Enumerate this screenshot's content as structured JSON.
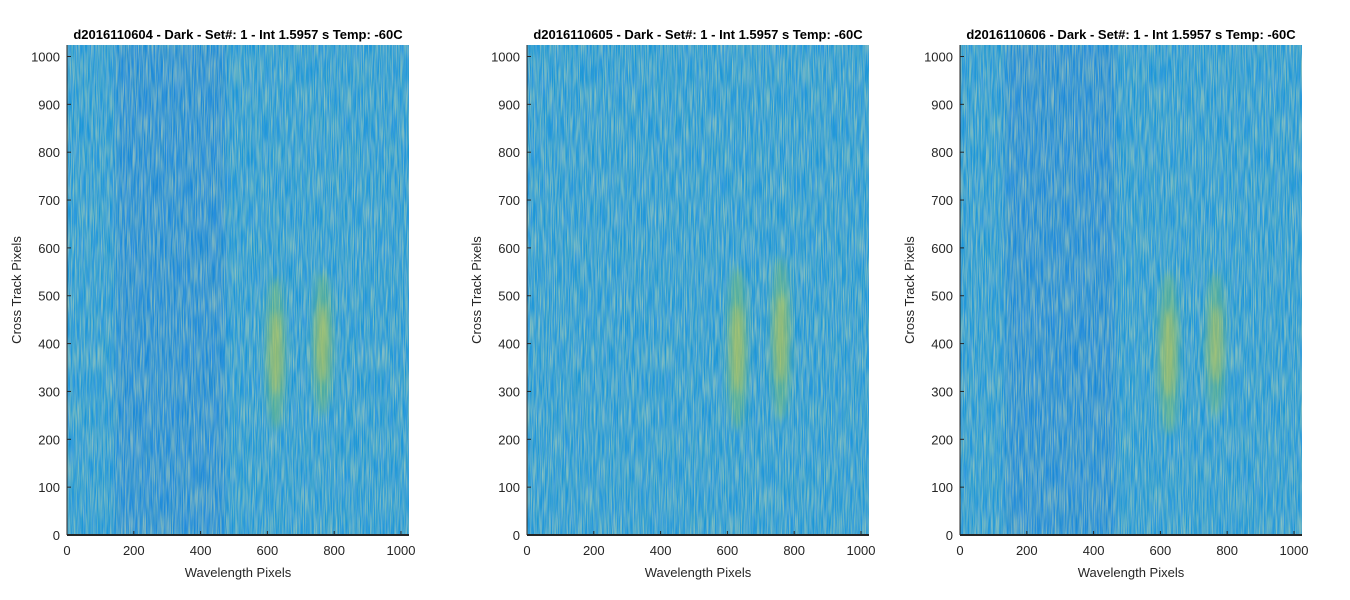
{
  "chart_data": [
    {
      "type": "heatmap",
      "title": "d2016110604 - Dark - Set#: 1 - Int 1.5957 s Temp: -60C",
      "xlabel": "Wavelength Pixels",
      "ylabel": "Cross Track Pixels",
      "xlim": [
        0,
        1024
      ],
      "ylim": [
        0,
        1024
      ],
      "xticks": [
        0,
        200,
        400,
        600,
        800,
        1000
      ],
      "yticks": [
        0,
        100,
        200,
        300,
        400,
        500,
        600,
        700,
        800,
        900,
        1000
      ],
      "colormap": "parula",
      "features": [
        {
          "x": 625,
          "y": 380,
          "x_halfwidth": 28,
          "y_halfwidth": 160,
          "strength": 0.9
        },
        {
          "x": 765,
          "y": 400,
          "x_halfwidth": 28,
          "y_halfwidth": 150,
          "strength": 0.9
        }
      ],
      "darker_band_x": 310
    },
    {
      "type": "heatmap",
      "title": "d2016110605 - Dark - Set#: 1 - Int 1.5957 s Temp: -60C",
      "xlabel": "Wavelength Pixels",
      "ylabel": "Cross Track Pixels",
      "xlim": [
        0,
        1024
      ],
      "ylim": [
        0,
        1024
      ],
      "xticks": [
        0,
        200,
        400,
        600,
        800,
        1000
      ],
      "yticks": [
        0,
        100,
        200,
        300,
        400,
        500,
        600,
        700,
        800,
        900,
        1000
      ],
      "colormap": "parula",
      "features": [
        {
          "x": 630,
          "y": 390,
          "x_halfwidth": 28,
          "y_halfwidth": 170,
          "strength": 0.95
        },
        {
          "x": 760,
          "y": 410,
          "x_halfwidth": 28,
          "y_halfwidth": 170,
          "strength": 0.9
        }
      ],
      "darker_band_x": null
    },
    {
      "type": "heatmap",
      "title": "d2016110606 - Dark - Set#: 1 - Int 1.5957 s Temp: -60C",
      "xlabel": "Wavelength Pixels",
      "ylabel": "Cross Track Pixels",
      "xlim": [
        0,
        1024
      ],
      "ylim": [
        0,
        1024
      ],
      "xticks": [
        0,
        200,
        400,
        600,
        800,
        1000
      ],
      "yticks": [
        0,
        100,
        200,
        300,
        400,
        500,
        600,
        700,
        800,
        900,
        1000
      ],
      "colormap": "parula",
      "features": [
        {
          "x": 625,
          "y": 380,
          "x_halfwidth": 30,
          "y_halfwidth": 170,
          "strength": 0.9
        },
        {
          "x": 765,
          "y": 400,
          "x_halfwidth": 28,
          "y_halfwidth": 150,
          "strength": 0.85
        }
      ],
      "darker_band_x": 300
    }
  ]
}
